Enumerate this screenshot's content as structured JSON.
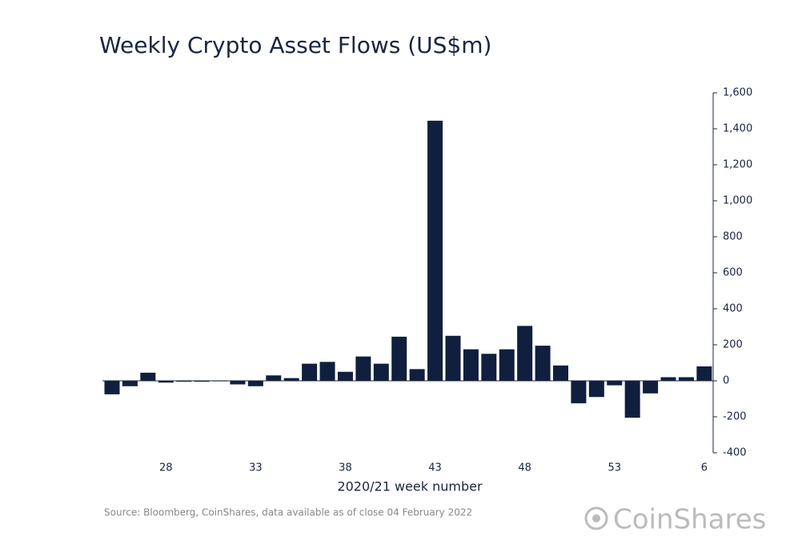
{
  "chart_data": {
    "type": "bar",
    "title": "Weekly Crypto Asset Flows (US$m)",
    "x_label": "2020/21 week number",
    "categories": [
      null,
      null,
      null,
      "28",
      null,
      null,
      null,
      null,
      "33",
      null,
      null,
      null,
      null,
      "38",
      null,
      null,
      null,
      null,
      "43",
      null,
      null,
      null,
      null,
      "48",
      null,
      null,
      null,
      null,
      "53",
      null,
      null,
      null,
      null,
      "6"
    ],
    "values": [
      -75,
      -30,
      45,
      -10,
      -5,
      -5,
      -3,
      -20,
      -30,
      30,
      15,
      95,
      105,
      50,
      135,
      95,
      245,
      65,
      1445,
      250,
      175,
      150,
      175,
      305,
      195,
      85,
      -125,
      -90,
      -25,
      -205,
      -70,
      20,
      20,
      80
    ],
    "color": "#0f1f3d",
    "ylim": [
      -400,
      1600
    ],
    "yticks": [
      -400,
      -200,
      0,
      200,
      400,
      600,
      800,
      {
        "value": 1000,
        "label": "1,000"
      },
      {
        "value": 1200,
        "label": "1,200"
      },
      {
        "value": 1400,
        "label": "1,400"
      },
      {
        "value": 1600,
        "label": "1,600"
      }
    ],
    "grid": false,
    "y_axis_side": "right"
  },
  "footer": {
    "source": "Source: Bloomberg, CoinShares, data available as of close 04 February 2022",
    "logo": "CoinShares"
  }
}
